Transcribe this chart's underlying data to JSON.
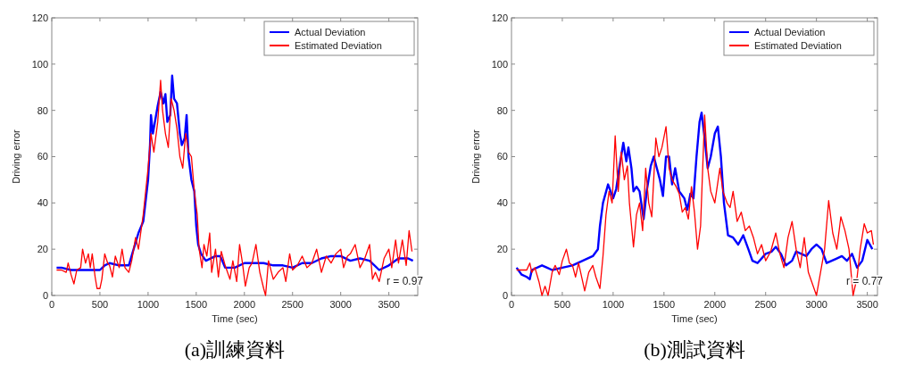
{
  "chart_data": [
    {
      "type": "line",
      "title": "(a)訓練資料",
      "xlabel": "Time (sec)",
      "ylabel": "Driving error",
      "xlim": [
        0,
        3800
      ],
      "ylim": [
        0,
        120
      ],
      "xticks": [
        0,
        500,
        1000,
        1500,
        2000,
        2500,
        3000,
        3500
      ],
      "yticks": [
        0,
        20,
        40,
        60,
        80,
        100,
        120
      ],
      "legend": "top right",
      "annotations": [
        "r = 0.97"
      ],
      "series": [
        {
          "name": "Actual Deviation",
          "color": "#0000ff",
          "x": [
            50,
            100,
            200,
            300,
            400,
            500,
            550,
            600,
            700,
            800,
            850,
            900,
            950,
            1000,
            1020,
            1030,
            1050,
            1100,
            1130,
            1160,
            1180,
            1200,
            1230,
            1250,
            1270,
            1300,
            1330,
            1350,
            1380,
            1400,
            1420,
            1450,
            1480,
            1500,
            1520,
            1550,
            1600,
            1700,
            1750,
            1800,
            1900,
            2000,
            2100,
            2200,
            2300,
            2400,
            2500,
            2600,
            2700,
            2800,
            2900,
            3000,
            3100,
            3200,
            3300,
            3400,
            3500,
            3600,
            3700,
            3750
          ],
          "values": [
            12,
            12,
            11,
            11,
            11,
            11,
            13,
            14,
            13,
            13,
            20,
            27,
            32,
            50,
            65,
            78,
            70,
            82,
            88,
            83,
            87,
            75,
            78,
            95,
            85,
            83,
            70,
            65,
            68,
            78,
            60,
            50,
            45,
            30,
            22,
            18,
            15,
            17,
            17,
            12,
            12,
            14,
            14,
            14,
            13,
            13,
            12,
            14,
            14,
            16,
            17,
            17,
            15,
            16,
            15,
            11,
            13,
            16,
            16,
            15
          ]
        },
        {
          "name": "Estimated Deviation",
          "color": "#ff0000",
          "x": [
            50,
            100,
            150,
            170,
            200,
            230,
            260,
            300,
            320,
            350,
            380,
            400,
            420,
            450,
            470,
            500,
            520,
            550,
            580,
            600,
            630,
            660,
            700,
            730,
            760,
            800,
            830,
            870,
            900,
            950,
            1000,
            1030,
            1060,
            1100,
            1130,
            1150,
            1180,
            1210,
            1240,
            1270,
            1300,
            1330,
            1360,
            1390,
            1420,
            1450,
            1480,
            1510,
            1530,
            1560,
            1580,
            1610,
            1640,
            1660,
            1700,
            1730,
            1760,
            1800,
            1850,
            1880,
            1920,
            1950,
            1980,
            2010,
            2050,
            2080,
            2120,
            2160,
            2200,
            2220,
            2250,
            2300,
            2350,
            2400,
            2430,
            2470,
            2500,
            2550,
            2600,
            2650,
            2700,
            2750,
            2800,
            2850,
            2900,
            2950,
            3000,
            3030,
            3070,
            3100,
            3150,
            3200,
            3250,
            3300,
            3330,
            3360,
            3400,
            3450,
            3500,
            3530,
            3570,
            3600,
            3640,
            3680,
            3710,
            3740
          ],
          "values": [
            11,
            11,
            10,
            14,
            9,
            5,
            11,
            12,
            20,
            14,
            18,
            12,
            18,
            8,
            3,
            3,
            7,
            18,
            14,
            13,
            8,
            17,
            12,
            20,
            12,
            10,
            15,
            25,
            20,
            35,
            55,
            70,
            62,
            75,
            93,
            80,
            70,
            64,
            85,
            80,
            72,
            60,
            55,
            70,
            62,
            60,
            45,
            35,
            20,
            12,
            22,
            17,
            27,
            10,
            20,
            8,
            19,
            13,
            7,
            15,
            6,
            22,
            14,
            4,
            12,
            14,
            22,
            10,
            3,
            0,
            15,
            7,
            10,
            12,
            6,
            18,
            11,
            13,
            17,
            12,
            14,
            20,
            10,
            17,
            14,
            18,
            20,
            12,
            17,
            18,
            22,
            12,
            16,
            22,
            7,
            10,
            6,
            16,
            20,
            12,
            24,
            14,
            24,
            13,
            28,
            19
          ]
        }
      ]
    },
    {
      "type": "line",
      "title": "(b)測試資料",
      "xlabel": "Time (sec)",
      "ylabel": "Driving error",
      "xlim": [
        0,
        3600
      ],
      "ylim": [
        0,
        120
      ],
      "xticks": [
        0,
        500,
        1000,
        1500,
        2000,
        2500,
        3000,
        3500
      ],
      "yticks": [
        0,
        20,
        40,
        60,
        80,
        100,
        120
      ],
      "legend": "top right",
      "annotations": [
        "r = 0.77"
      ],
      "series": [
        {
          "name": "Actual Deviation",
          "color": "#0000ff",
          "x": [
            50,
            100,
            150,
            180,
            200,
            300,
            350,
            400,
            500,
            600,
            700,
            800,
            850,
            870,
            900,
            950,
            1000,
            1030,
            1060,
            1100,
            1130,
            1150,
            1180,
            1200,
            1230,
            1260,
            1300,
            1330,
            1370,
            1400,
            1430,
            1460,
            1490,
            1520,
            1550,
            1580,
            1610,
            1650,
            1700,
            1730,
            1760,
            1790,
            1820,
            1850,
            1870,
            1900,
            1930,
            1960,
            2000,
            2030,
            2060,
            2090,
            2130,
            2180,
            2230,
            2280,
            2330,
            2370,
            2420,
            2500,
            2560,
            2600,
            2650,
            2700,
            2760,
            2800,
            2850,
            2900,
            2950,
            3000,
            3050,
            3100,
            3150,
            3200,
            3250,
            3300,
            3350,
            3400,
            3450,
            3500,
            3550
          ],
          "values": [
            12,
            9,
            8,
            7,
            11,
            13,
            12,
            11,
            12,
            13,
            15,
            17,
            20,
            30,
            40,
            48,
            42,
            46,
            55,
            66,
            58,
            64,
            55,
            45,
            47,
            45,
            33,
            45,
            56,
            60,
            55,
            50,
            43,
            60,
            60,
            48,
            55,
            45,
            42,
            37,
            44,
            42,
            60,
            75,
            79,
            68,
            55,
            60,
            70,
            73,
            60,
            40,
            26,
            25,
            22,
            26,
            20,
            15,
            14,
            18,
            19,
            21,
            18,
            13,
            15,
            19,
            18,
            17,
            20,
            22,
            20,
            14,
            15,
            16,
            17,
            15,
            18,
            12,
            15,
            24,
            20
          ]
        },
        {
          "name": "Estimated Deviation",
          "color": "#ff0000",
          "x": [
            50,
            150,
            180,
            200,
            230,
            270,
            300,
            330,
            360,
            400,
            430,
            470,
            500,
            540,
            570,
            600,
            630,
            660,
            700,
            720,
            760,
            800,
            830,
            870,
            900,
            930,
            960,
            990,
            1020,
            1050,
            1080,
            1110,
            1140,
            1160,
            1200,
            1230,
            1260,
            1290,
            1320,
            1350,
            1380,
            1420,
            1450,
            1480,
            1520,
            1550,
            1580,
            1620,
            1650,
            1680,
            1710,
            1740,
            1770,
            1800,
            1830,
            1860,
            1900,
            1930,
            1960,
            2000,
            2050,
            2080,
            2120,
            2150,
            2180,
            2220,
            2260,
            2300,
            2340,
            2380,
            2420,
            2460,
            2500,
            2550,
            2600,
            2640,
            2680,
            2720,
            2760,
            2800,
            2840,
            2880,
            2920,
            2960,
            3000,
            3040,
            3080,
            3120,
            3160,
            3200,
            3240,
            3280,
            3320,
            3360,
            3400,
            3430,
            3470,
            3500,
            3540,
            3560
          ],
          "values": [
            11,
            11,
            14,
            10,
            12,
            6,
            0,
            4,
            0,
            10,
            13,
            9,
            15,
            20,
            14,
            13,
            8,
            14,
            6,
            2,
            10,
            13,
            8,
            3,
            17,
            35,
            45,
            40,
            69,
            45,
            62,
            50,
            56,
            40,
            21,
            35,
            40,
            28,
            55,
            40,
            34,
            68,
            60,
            64,
            73,
            55,
            50,
            47,
            44,
            36,
            38,
            33,
            47,
            36,
            20,
            30,
            78,
            55,
            45,
            40,
            55,
            45,
            40,
            38,
            45,
            32,
            36,
            28,
            30,
            25,
            18,
            22,
            15,
            19,
            27,
            18,
            12,
            25,
            32,
            20,
            12,
            25,
            10,
            5,
            0,
            10,
            20,
            41,
            27,
            20,
            34,
            28,
            20,
            0,
            8,
            20,
            31,
            27,
            28,
            22
          ]
        }
      ]
    }
  ]
}
